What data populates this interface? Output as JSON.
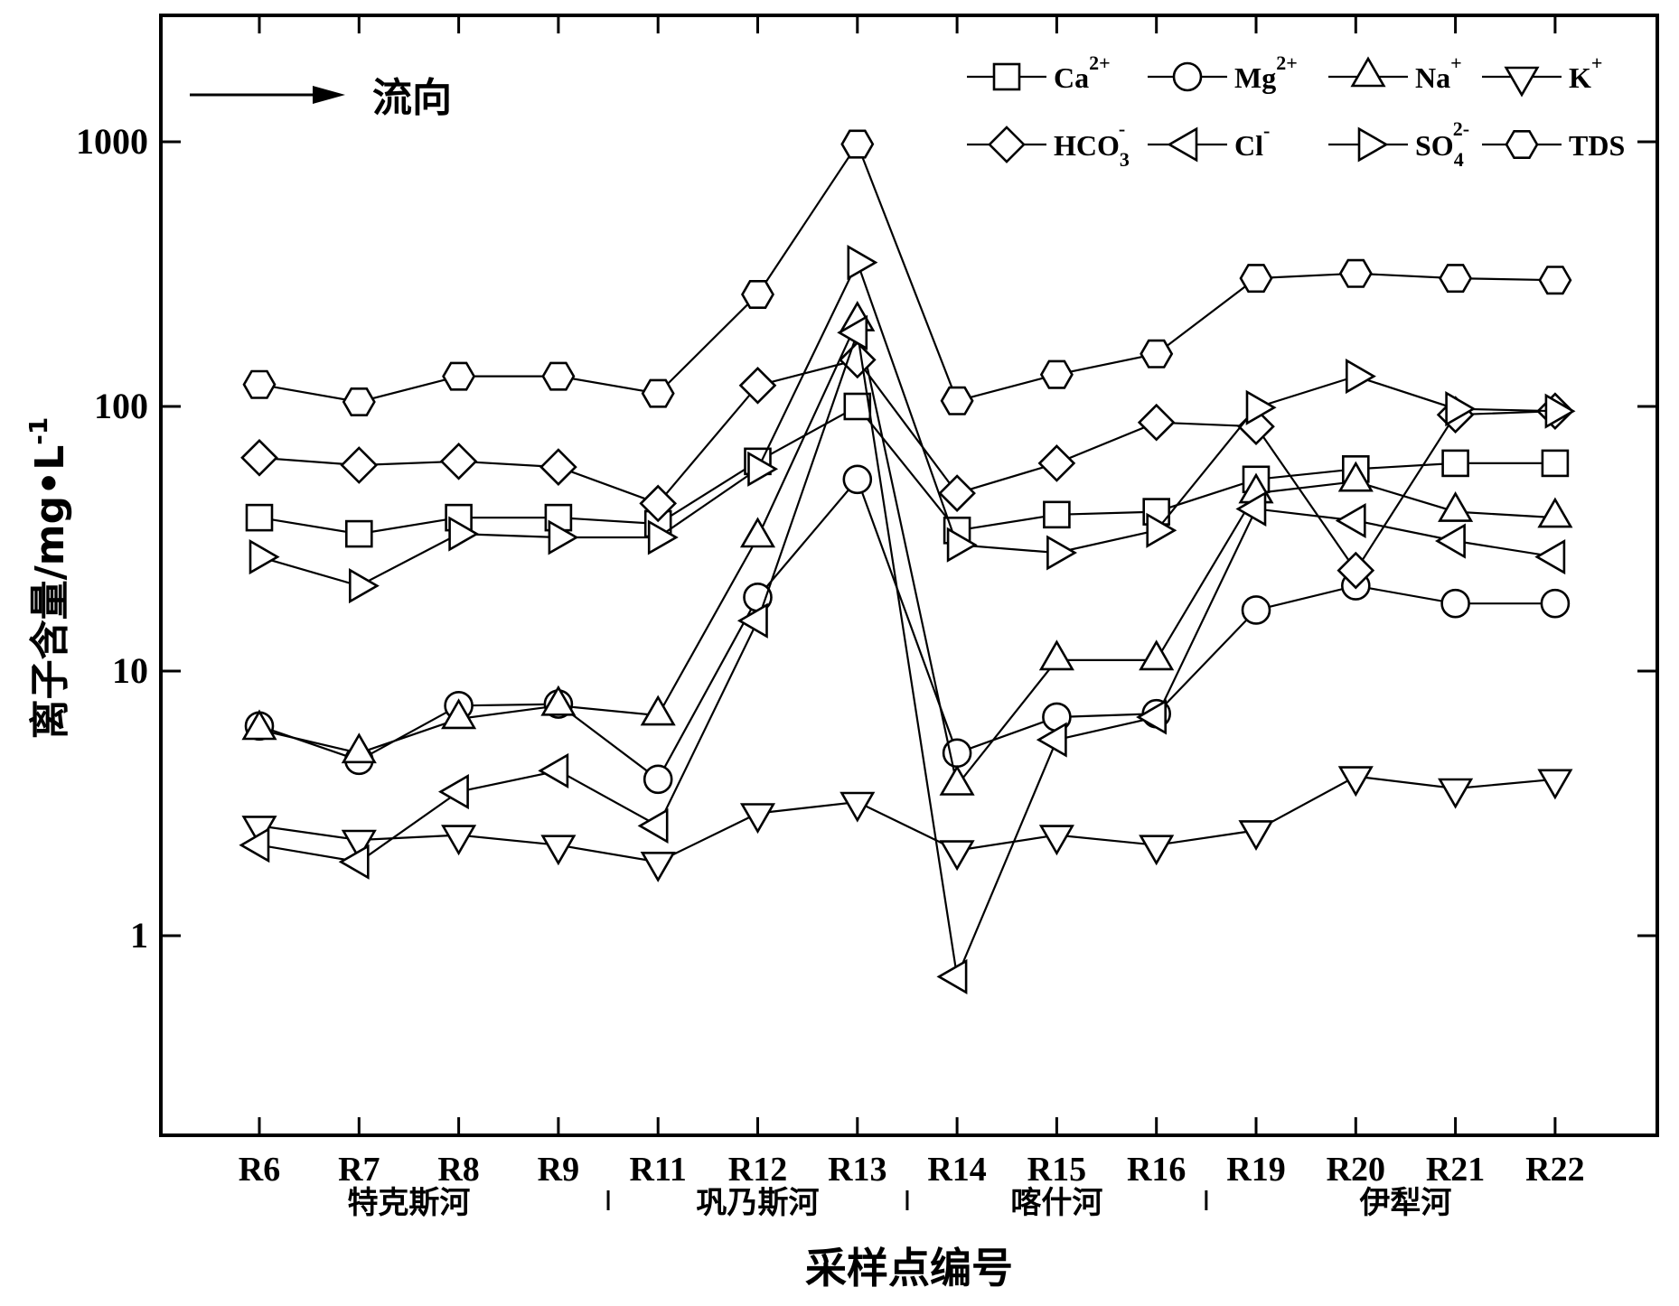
{
  "chart_data": {
    "type": "line",
    "yscale": "log",
    "ylim": [
      0.2,
      2500
    ],
    "yticks": [
      1,
      10,
      100,
      1000
    ],
    "ytick_labels": [
      "1",
      "10",
      "100",
      "1000"
    ],
    "ylabel": "离子含量/mg•L",
    "ylabel_exp": "-1",
    "xlabel": "采样点编号",
    "categories": [
      "R6",
      "R7",
      "R8",
      "R9",
      "R11",
      "R12",
      "R13",
      "R14",
      "R15",
      "R16",
      "R19",
      "R20",
      "R21",
      "R22"
    ],
    "groups": [
      {
        "label": "特克斯河",
        "from": 0,
        "to": 3
      },
      {
        "label": "巩乃斯河",
        "from": 4,
        "to": 6
      },
      {
        "label": "喀什河",
        "from": 7,
        "to": 9
      },
      {
        "label": "伊犁河",
        "from": 10,
        "to": 13
      }
    ],
    "flow_label": "流向",
    "legend_position": "top-right",
    "series": [
      {
        "name": "Ca",
        "sup": "2+",
        "sub": "",
        "marker": "square",
        "values": [
          38,
          33,
          38,
          38,
          36,
          62,
          100,
          34,
          39,
          40,
          53,
          58,
          61,
          61
        ]
      },
      {
        "name": "Mg",
        "sup": "2+",
        "sub": "",
        "marker": "circle",
        "values": [
          6.2,
          4.6,
          7.4,
          7.5,
          3.9,
          19,
          53,
          4.9,
          6.7,
          6.9,
          17,
          21,
          18,
          18
        ]
      },
      {
        "name": "Na",
        "sup": "+",
        "sub": "",
        "marker": "triangle-up",
        "values": [
          6.0,
          4.9,
          6.6,
          7.4,
          6.8,
          32,
          210,
          3.7,
          11,
          11,
          47,
          52,
          40,
          38
        ]
      },
      {
        "name": "K",
        "sup": "+",
        "sub": "",
        "marker": "triangle-down",
        "values": [
          2.6,
          2.3,
          2.4,
          2.2,
          1.9,
          2.9,
          3.2,
          2.1,
          2.4,
          2.2,
          2.5,
          4.0,
          3.6,
          3.9
        ]
      },
      {
        "name": "HCO",
        "sup": "-",
        "sub": "3",
        "marker": "diamond",
        "values": [
          64,
          60,
          62,
          59,
          43,
          120,
          150,
          47,
          61,
          87,
          84,
          24,
          93,
          96
        ]
      },
      {
        "name": "Cl",
        "sup": "-",
        "sub": "",
        "marker": "triangle-left",
        "values": [
          2.2,
          1.9,
          3.5,
          4.2,
          2.6,
          15.5,
          190,
          0.7,
          5.5,
          6.7,
          41,
          37,
          31,
          27
        ]
      },
      {
        "name": "SO",
        "sup": "2-",
        "sub": "4",
        "marker": "triangle-right",
        "values": [
          27,
          21,
          33,
          32,
          32,
          58,
          350,
          30,
          28,
          34,
          99,
          130,
          98,
          96
        ]
      },
      {
        "name": "TDS",
        "sup": "",
        "sub": "",
        "marker": "hexagon",
        "values": [
          121,
          104,
          130,
          130,
          112,
          265,
          980,
          105,
          132,
          158,
          305,
          318,
          305,
          300
        ]
      }
    ]
  }
}
